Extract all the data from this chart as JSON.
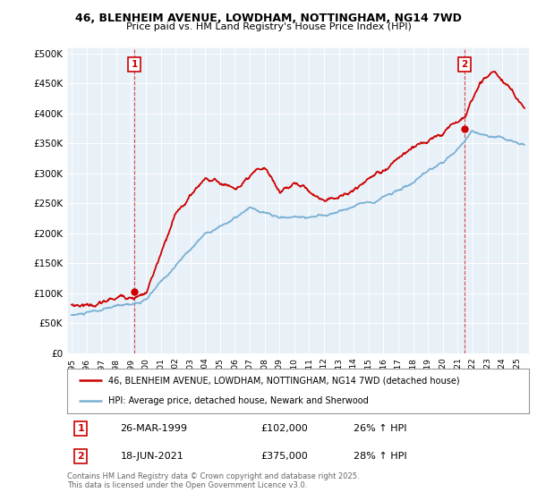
{
  "title_line1": "46, BLENHEIM AVENUE, LOWDHAM, NOTTINGHAM, NG14 7WD",
  "title_line2": "Price paid vs. HM Land Registry's House Price Index (HPI)",
  "yticks": [
    0,
    50000,
    100000,
    150000,
    200000,
    250000,
    300000,
    350000,
    400000,
    450000,
    500000
  ],
  "ytick_labels": [
    "£0",
    "£50K",
    "£100K",
    "£150K",
    "£200K",
    "£250K",
    "£300K",
    "£350K",
    "£400K",
    "£450K",
    "£500K"
  ],
  "ylim": [
    0,
    510000
  ],
  "marker1_year": 1999.23,
  "marker1_value": 102000,
  "marker1_label": "1",
  "marker2_year": 2021.46,
  "marker2_value": 375000,
  "marker2_label": "2",
  "red_color": "#cc0000",
  "blue_color": "#7ab0d4",
  "legend_line1": "46, BLENHEIM AVENUE, LOWDHAM, NOTTINGHAM, NG14 7WD (detached house)",
  "legend_line2": "HPI: Average price, detached house, Newark and Sherwood",
  "table_row1": [
    "1",
    "26-MAR-1999",
    "£102,000",
    "26% ↑ HPI"
  ],
  "table_row2": [
    "2",
    "18-JUN-2021",
    "£375,000",
    "28% ↑ HPI"
  ],
  "footnote": "Contains HM Land Registry data © Crown copyright and database right 2025.\nThis data is licensed under the Open Government Licence v3.0.",
  "bg_color": "#ffffff",
  "plot_bg_color": "#e8f0f8",
  "grid_color": "#ffffff"
}
